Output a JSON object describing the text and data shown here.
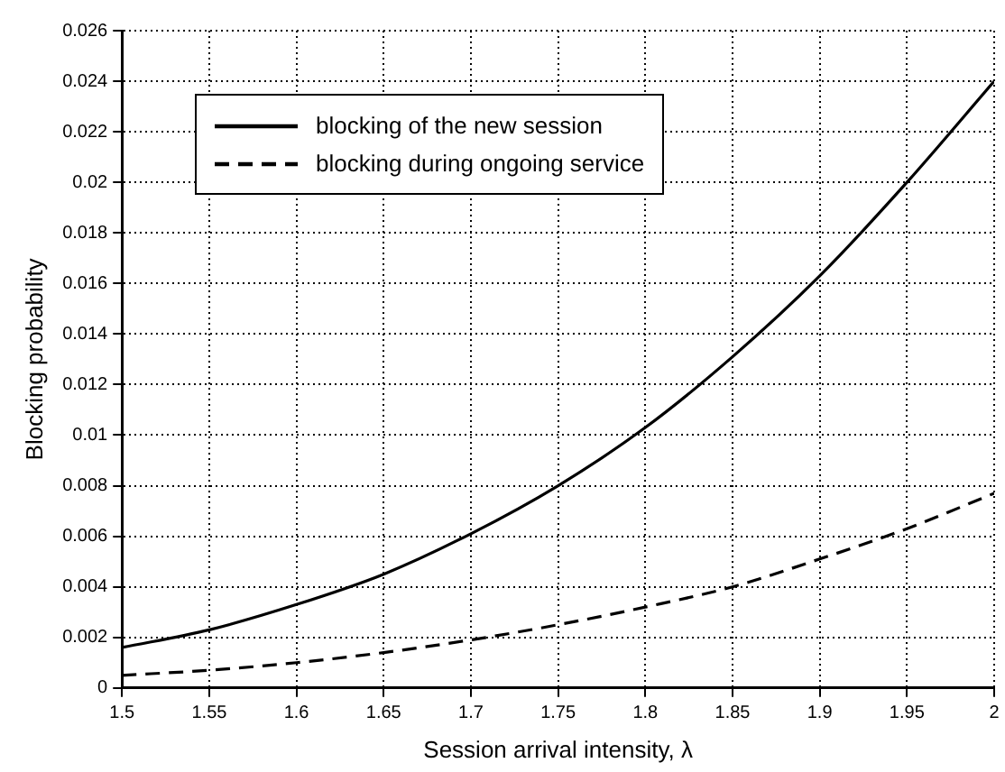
{
  "chart_data": {
    "type": "line",
    "xlabel": "Session arrival intensity, λ",
    "ylabel": "Blocking probability",
    "x": [
      1.5,
      1.55,
      1.6,
      1.65,
      1.7,
      1.75,
      1.8,
      1.85,
      1.9,
      1.95,
      2.0
    ],
    "series": [
      {
        "name": "blocking of the new session",
        "color": "#000000",
        "line_style": "solid",
        "values": [
          0.0016,
          0.0023,
          0.0033,
          0.0045,
          0.0061,
          0.008,
          0.0103,
          0.0131,
          0.0163,
          0.02,
          0.024
        ]
      },
      {
        "name": "blocking during ongoing service",
        "color": "#000000",
        "line_style": "dashed",
        "values": [
          0.0005,
          0.0007,
          0.001,
          0.0014,
          0.0019,
          0.0025,
          0.0032,
          0.004,
          0.0051,
          0.0063,
          0.0077
        ]
      }
    ],
    "xlim": [
      1.5,
      2.0
    ],
    "xticks": [
      1.5,
      1.55,
      1.6,
      1.65,
      1.7,
      1.75,
      1.8,
      1.85,
      1.9,
      1.95,
      2
    ],
    "ylim": [
      0,
      0.026
    ],
    "yticks": [
      0,
      0.002,
      0.004,
      0.006,
      0.008,
      0.01,
      0.012,
      0.014,
      0.016,
      0.018,
      0.02,
      0.022,
      0.024,
      0.026
    ],
    "grid": true,
    "legend": "top left",
    "marker": "none"
  }
}
